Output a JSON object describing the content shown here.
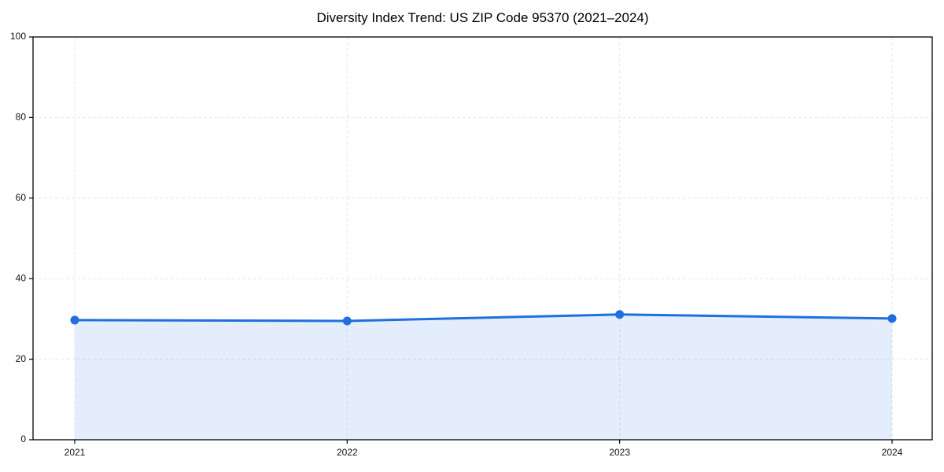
{
  "chart_data": {
    "type": "area",
    "title": "Diversity Index Trend: US ZIP Code 95370 (2021–2024)",
    "series_name": "Diversity Index",
    "categories": [
      "2021",
      "2022",
      "2023",
      "2024"
    ],
    "values": [
      29.7,
      29.5,
      31.1,
      30.1
    ],
    "xlabel": "",
    "ylabel": "",
    "ylim": [
      0,
      100
    ],
    "yticks": [
      0,
      20,
      40,
      60,
      80,
      100
    ],
    "grid": true,
    "grid_style": "dashed",
    "legend": false,
    "colors": {
      "line": "#1f6fde",
      "marker": "#1f6fde",
      "fill": "#1f6fde",
      "fill_opacity": 0.125,
      "grid": "#e7e7e7",
      "spine": "#000000",
      "tick_text": "#111111",
      "background": "#ffffff"
    }
  }
}
